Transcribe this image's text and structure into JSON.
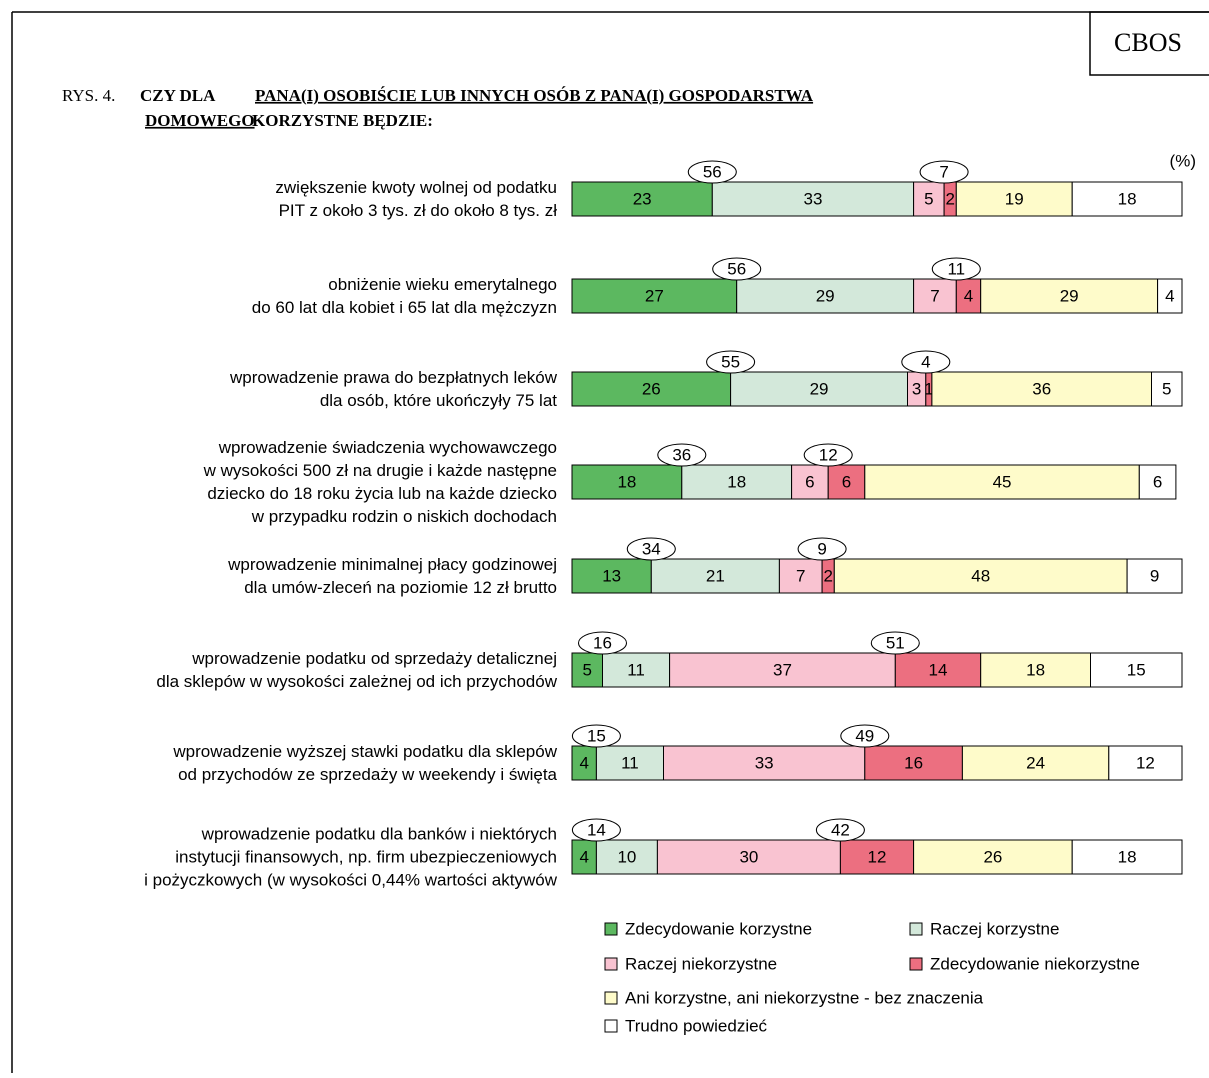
{
  "brand": "CBOS",
  "chart_data": {
    "type": "stacked_hbar",
    "figure_label": "RYS. 4.",
    "title": {
      "prefix": "CZY DLA",
      "underlined_1": "PANA(I) OSOBIŚCIE LUB INNYCH OSÓB Z PANA(I) GOSPODARSTWA",
      "underlined_2": "DOMOWEGO",
      "suffix": "KORZYSTNE BĘDZIE:"
    },
    "unit": "(%)",
    "categories": [
      [
        "zwiększenie kwoty wolnej od podatku",
        "PIT z około 3 tys. zł do około 8 tys. zł"
      ],
      [
        "obniżenie wieku emerytalnego",
        "do 60 lat dla kobiet i 65 lat dla mężczyzn"
      ],
      [
        "wprowadzenie prawa do bezpłatnych leków",
        "dla osób, które ukończyły 75 lat"
      ],
      [
        "wprowadzenie świadczenia wychowawczego",
        "w wysokości 500 zł na drugie i każde następne",
        "dziecko do 18 roku życia lub na każde dziecko",
        "w przypadku rodzin o niskich dochodach"
      ],
      [
        "wprowadzenie minimalnej płacy godzinowej",
        "dla umów-zleceń na poziomie 12 zł brutto"
      ],
      [
        "wprowadzenie podatku od sprzedaży detalicznej",
        "dla sklepów w wysokości zależnej od ich przychodów"
      ],
      [
        "wprowadzenie wyższej stawki podatku dla sklepów",
        "od przychodów ze sprzedaży w weekendy i święta"
      ],
      [
        "wprowadzenie podatku dla banków i niektórych",
        "instytucji finansowych, np. firm ubezpieczeniowych",
        "i pożyczkowych (w wysokości 0,44% wartości aktywów"
      ]
    ],
    "series": [
      {
        "name": "Zdecydowanie korzystne",
        "color": "#5cb860",
        "values": [
          23,
          27,
          26,
          18,
          13,
          5,
          4,
          4
        ]
      },
      {
        "name": "Raczej korzystne",
        "color": "#d3e8da",
        "values": [
          33,
          29,
          29,
          18,
          21,
          11,
          11,
          10
        ]
      },
      {
        "name": "Raczej niekorzystne",
        "color": "#f9c3d1",
        "values": [
          5,
          7,
          3,
          6,
          7,
          37,
          33,
          30
        ]
      },
      {
        "name": "Zdecydowanie niekorzystne",
        "color": "#ec6f80",
        "values": [
          2,
          4,
          1,
          6,
          2,
          14,
          16,
          12
        ]
      },
      {
        "name": "Ani korzystne, ani niekorzystne - bez znaczenia",
        "color": "#fefbca",
        "values": [
          19,
          29,
          36,
          45,
          48,
          18,
          24,
          26
        ]
      },
      {
        "name": "Trudno powiedzieć",
        "color": "#ffffff",
        "values": [
          18,
          4,
          5,
          6,
          9,
          15,
          12,
          18
        ]
      }
    ],
    "positive_totals": [
      56,
      56,
      55,
      36,
      34,
      16,
      15,
      14
    ],
    "negative_totals": [
      7,
      11,
      4,
      12,
      9,
      51,
      49,
      42
    ],
    "xlim": [
      0,
      100
    ]
  }
}
